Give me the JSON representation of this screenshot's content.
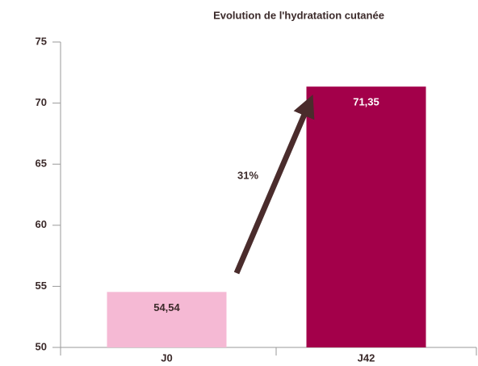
{
  "chart_data": {
    "type": "bar",
    "title": "Evolution de l'hydratation cutanée",
    "categories": [
      "J0",
      "J42"
    ],
    "values": [
      54.54,
      71.35
    ],
    "value_labels": [
      "54,54",
      "71,35"
    ],
    "colors": [
      "#f5b9d4",
      "#a3004a"
    ],
    "label_colors": [
      "#3b2a2a",
      "#ffffff"
    ],
    "ylim": [
      50,
      75
    ],
    "yticks": [
      50,
      55,
      60,
      65,
      70,
      75
    ],
    "grid": false,
    "annotations": [
      {
        "text": "31%"
      }
    ]
  }
}
